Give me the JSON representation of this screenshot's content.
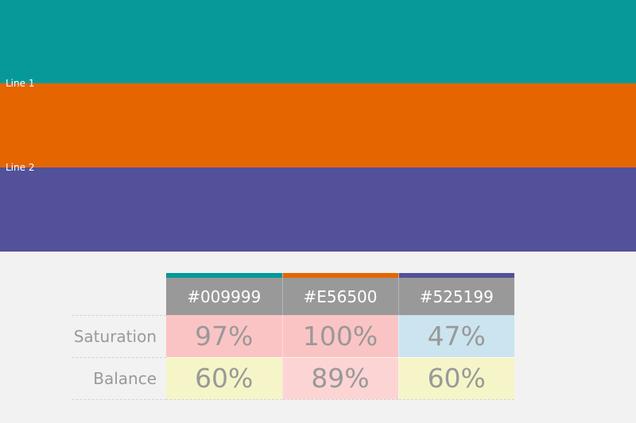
{
  "bands": [
    {
      "label": "",
      "color": "#079999"
    },
    {
      "label": "Line 1",
      "color": "#e56500"
    },
    {
      "label": "Line 2",
      "color": "#535199"
    }
  ],
  "table": {
    "columns": [
      {
        "hex": "#009999",
        "color": "#009999"
      },
      {
        "hex": "#E56500",
        "color": "#e56500"
      },
      {
        "hex": "#525199",
        "color": "#525199"
      }
    ],
    "rows": [
      {
        "label": "Saturation",
        "values": [
          "97%",
          "100%",
          "47%"
        ],
        "bg": [
          "#fbc4c4",
          "#fbc4c4",
          "#cbe4f0"
        ]
      },
      {
        "label": "Balance",
        "values": [
          "60%",
          "89%",
          "60%"
        ],
        "bg": [
          "#f5f5c8",
          "#fdd4d4",
          "#f5f5c8"
        ]
      }
    ]
  }
}
